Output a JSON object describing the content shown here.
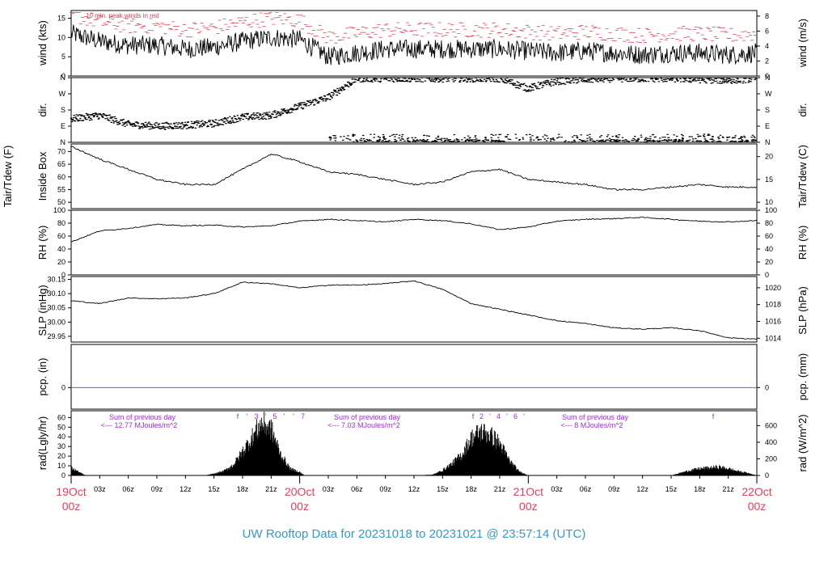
{
  "title": "UW Rooftop Data for 20231018  to  20231021 @ 23:57:14  (UTC)",
  "colors": {
    "title": "#3399cc",
    "date_labels": "#e0405a",
    "peak_wind": "#e0405a",
    "precip_line": "#4a6fd0",
    "radiation_annotations": "#9a2fd0",
    "trace": "#000000"
  },
  "x_axis": {
    "major_labels": [
      {
        "day": "19Oct",
        "hour": "00z"
      },
      {
        "day": "20Oct",
        "hour": "00z"
      },
      {
        "day": "21Oct",
        "hour": "00z"
      },
      {
        "day": "22Oct",
        "hour": "00z"
      }
    ],
    "minor_labels": [
      "03z",
      "06z",
      "09z",
      "12z",
      "15z",
      "18z",
      "21z"
    ]
  },
  "panels": {
    "wind": {
      "left_label": "wind (kts)",
      "right_label": "wind (m/s)",
      "left_ticks": [
        "0",
        "5",
        "10",
        "15"
      ],
      "right_ticks": [
        "0",
        "2",
        "4",
        "6",
        "8"
      ],
      "note": "10 min. peak winds in red"
    },
    "dir": {
      "left_label": "dir.",
      "right_label": "dir.",
      "ticks": [
        "N",
        "E",
        "S",
        "W",
        "N"
      ]
    },
    "temp": {
      "left_label_1": "Tair/Tdew (F)",
      "left_label_2": "Inside Box",
      "right_label": "Tair/Tdew (C)",
      "left_ticks": [
        "50",
        "55",
        "60",
        "65",
        "70"
      ],
      "right_ticks": [
        "10",
        "15",
        "20"
      ]
    },
    "rh": {
      "left_label": "RH (%)",
      "right_label": "RH (%)",
      "ticks": [
        "0",
        "20",
        "40",
        "60",
        "80",
        "100"
      ]
    },
    "slp": {
      "left_label": "SLP (inHg)",
      "right_label": "SLP (hPa)",
      "left_ticks": [
        "29.95",
        "30.00",
        "30.05",
        "30.10",
        "30.15"
      ],
      "right_ticks": [
        "1014",
        "1016",
        "1018",
        "1020"
      ]
    },
    "pcp": {
      "left_label": "pcp. (in)",
      "right_label": "pcp. (mm)",
      "left_ticks": [
        "0"
      ],
      "right_ticks": [
        "0"
      ]
    },
    "rad": {
      "left_label": "rad(Lgly/hr)",
      "right_label": "rad (W/m^2)",
      "left_ticks": [
        "0",
        "10",
        "20",
        "30",
        "40",
        "50",
        "60"
      ],
      "right_ticks": [
        "0",
        "200",
        "400",
        "600"
      ],
      "annotations": [
        {
          "line1": "Sum of previous day",
          "line2": "<--- 12.77 MJoules/m^2"
        },
        {
          "line1": "Sum of previous day",
          "line2": "<--- 7.03 MJoules/m^2"
        },
        {
          "line1": "Sum of previous day",
          "line2": "<--- 8 MJoules/m^2"
        }
      ],
      "peak_marks": [
        [
          "f",
          "'",
          "3",
          "'",
          "5",
          "'",
          "'",
          "7"
        ],
        [
          "f",
          "2",
          "'",
          "4",
          "'",
          "6",
          "'"
        ],
        [
          "f"
        ]
      ]
    }
  },
  "chart_data": {
    "type": "line",
    "x_unit": "hours since 2023-10-19 00z",
    "x_range": [
      0,
      72
    ],
    "series": [
      {
        "name": "wind (kts)",
        "ylim": [
          0,
          17
        ],
        "x": [
          0,
          3,
          6,
          9,
          12,
          15,
          18,
          21,
          24,
          27,
          30,
          33,
          36,
          39,
          42,
          45,
          48,
          51,
          54,
          57,
          60,
          63,
          66,
          69,
          72
        ],
        "y": [
          11,
          9,
          8,
          8,
          7,
          7.5,
          9,
          10,
          9.5,
          5,
          6,
          7,
          7,
          7,
          7,
          7,
          6.5,
          6,
          6.5,
          6,
          5.5,
          6,
          6,
          5.5,
          6
        ]
      },
      {
        "name": "dir.",
        "ylim": [
          0,
          360
        ],
        "x": [
          0,
          3,
          6,
          9,
          12,
          15,
          18,
          21,
          24,
          27,
          30,
          33,
          36,
          39,
          42,
          45,
          48,
          51,
          54,
          57,
          60,
          63,
          66,
          69,
          72
        ],
        "y": [
          130,
          150,
          100,
          90,
          95,
          105,
          140,
          150,
          200,
          250,
          355,
          355,
          355,
          355,
          355,
          355,
          300,
          340,
          350,
          355,
          355,
          355,
          350,
          345,
          355
        ]
      },
      {
        "name": "Tair/Tdew (F)",
        "ylim": [
          47.5,
          73
        ],
        "x": [
          0,
          3,
          6,
          9,
          12,
          15,
          18,
          21,
          24,
          27,
          30,
          33,
          36,
          39,
          42,
          45,
          48,
          51,
          54,
          57,
          60,
          63,
          66,
          69,
          72
        ],
        "y": [
          72,
          67,
          63,
          59,
          57,
          57,
          63,
          69,
          66,
          62,
          61,
          59,
          57,
          58,
          62,
          63,
          59,
          58,
          57,
          55,
          55,
          56,
          57,
          56,
          56
        ]
      },
      {
        "name": "RH (%)",
        "ylim": [
          0,
          100
        ],
        "x": [
          0,
          3,
          6,
          9,
          12,
          15,
          18,
          21,
          24,
          27,
          30,
          33,
          36,
          39,
          42,
          45,
          48,
          51,
          54,
          57,
          60,
          63,
          66,
          69,
          72
        ],
        "y": [
          51,
          68,
          72,
          78,
          76,
          77,
          74,
          76,
          83,
          86,
          84,
          82,
          86,
          84,
          79,
          70,
          74,
          83,
          86,
          87,
          89,
          86,
          83,
          82,
          84
        ]
      },
      {
        "name": "SLP (inHg)",
        "ylim": [
          29.93,
          30.16
        ],
        "x": [
          0,
          3,
          6,
          9,
          12,
          15,
          18,
          21,
          24,
          27,
          30,
          33,
          36,
          39,
          42,
          45,
          48,
          51,
          54,
          57,
          60,
          63,
          66,
          69,
          72
        ],
        "y": [
          30.075,
          30.065,
          30.085,
          30.082,
          30.085,
          30.1,
          30.14,
          30.135,
          30.12,
          30.13,
          30.13,
          30.135,
          30.145,
          30.115,
          30.065,
          30.045,
          30.025,
          30.005,
          29.995,
          29.98,
          29.975,
          29.98,
          29.97,
          29.945,
          29.94
        ]
      },
      {
        "name": "pcp. (in)",
        "ylim": [
          -0.5,
          1
        ],
        "x": [
          0,
          72
        ],
        "y": [
          0,
          0
        ]
      },
      {
        "name": "rad(Lgly/hr)",
        "ylim": [
          0,
          67
        ],
        "x": [
          0,
          1,
          1.5,
          12,
          14,
          15,
          16,
          17,
          18,
          19,
          20,
          21,
          22,
          23,
          24,
          24.5,
          36,
          38,
          39,
          40,
          41,
          42,
          43,
          44,
          45,
          46,
          47,
          48,
          60,
          63,
          64,
          65,
          66,
          67,
          68,
          69,
          70,
          71,
          72
        ],
        "y": [
          9,
          3,
          0,
          0,
          0,
          2,
          5,
          12,
          28,
          45,
          62,
          55,
          25,
          8,
          4,
          0,
          0,
          1,
          6,
          14,
          24,
          44,
          52,
          48,
          38,
          18,
          5,
          0,
          0,
          0,
          3,
          6,
          8,
          9,
          10,
          8,
          5,
          3,
          0
        ]
      }
    ]
  }
}
